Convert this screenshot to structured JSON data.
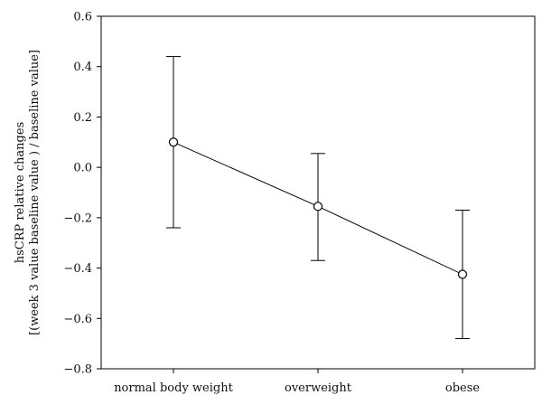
{
  "chart_data": {
    "type": "line",
    "categories": [
      "normal body weight",
      "overweight",
      "obese"
    ],
    "series": [
      {
        "values": [
          0.1,
          -0.155,
          -0.425
        ],
        "error_low": [
          -0.24,
          -0.37,
          -0.68
        ],
        "error_high": [
          0.44,
          0.055,
          -0.17
        ]
      }
    ],
    "ylabel_lines": [
      "hsCRP relative changes",
      "[(week 3 value  baseline value ) / baseline value]"
    ],
    "ylim": [
      -0.8,
      0.6
    ],
    "yticks": [
      0.6,
      0.4,
      0.2,
      0.0,
      -0.2,
      -0.4,
      -0.6,
      -0.8
    ],
    "ytick_labels": [
      "0.6",
      "0.4",
      "0.2",
      "0.0",
      "−0.2",
      "−0.4",
      "−0.6",
      "−0.8"
    ],
    "grid": false,
    "legend": "none",
    "colors": {
      "line": "#000000",
      "marker_fill": "#ffffff",
      "marker_stroke": "#000000",
      "axis": "#000000",
      "text": "#111111"
    }
  }
}
